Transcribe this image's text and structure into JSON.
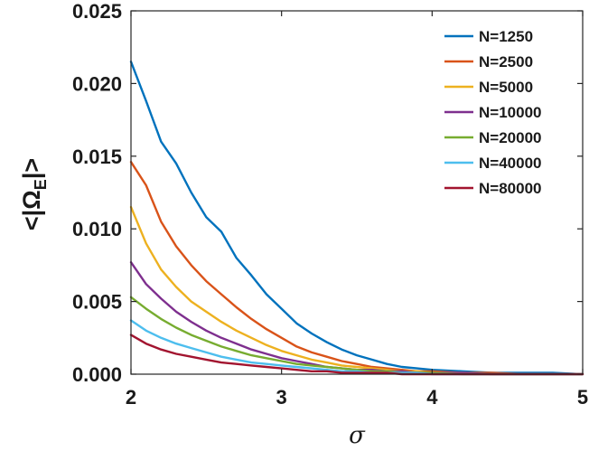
{
  "chart_data": {
    "type": "line",
    "title": "",
    "xlabel": "σ",
    "ylabel_prefix": "<|Ω",
    "ylabel_sub": "E",
    "ylabel_suffix": "|>",
    "xlim": [
      2,
      5
    ],
    "ylim": [
      0,
      0.025
    ],
    "xticks": [
      2,
      3,
      4,
      5
    ],
    "xtick_labels": [
      "2",
      "3",
      "4",
      "5"
    ],
    "yticks": [
      0,
      0.005,
      0.01,
      0.015,
      0.02,
      0.025
    ],
    "ytick_labels": [
      "0.000",
      "0.005",
      "0.010",
      "0.015",
      "0.020",
      "0.025"
    ],
    "grid": false,
    "legend_position": "top-right",
    "x": [
      2.0,
      2.1,
      2.2,
      2.3,
      2.4,
      2.5,
      2.6,
      2.7,
      2.8,
      2.9,
      3.0,
      3.1,
      3.2,
      3.3,
      3.4,
      3.5,
      3.6,
      3.7,
      3.8,
      3.9,
      4.0,
      4.2,
      4.4,
      4.6,
      4.8,
      5.0
    ],
    "series": [
      {
        "name": "N=1250",
        "color": "#0072BD",
        "values": [
          0.0215,
          0.0188,
          0.016,
          0.0145,
          0.0125,
          0.0108,
          0.0098,
          0.008,
          0.0068,
          0.0055,
          0.0045,
          0.0035,
          0.0028,
          0.0022,
          0.0017,
          0.0013,
          0.001,
          0.0007,
          0.0005,
          0.0004,
          0.0003,
          0.0002,
          0.0001,
          0.0001,
          0.0001,
          0.0
        ]
      },
      {
        "name": "N=2500",
        "color": "#D95319",
        "values": [
          0.0146,
          0.013,
          0.0105,
          0.0088,
          0.0075,
          0.0064,
          0.0055,
          0.0046,
          0.0038,
          0.0031,
          0.0025,
          0.0019,
          0.0015,
          0.0012,
          0.0009,
          0.0007,
          0.0005,
          0.0004,
          0.0003,
          0.0002,
          0.0002,
          0.0001,
          0.0001,
          0.0,
          0.0,
          0.0
        ]
      },
      {
        "name": "N=5000",
        "color": "#EDB120",
        "values": [
          0.0115,
          0.009,
          0.0072,
          0.006,
          0.005,
          0.0043,
          0.0036,
          0.003,
          0.0025,
          0.002,
          0.0016,
          0.0013,
          0.001,
          0.0008,
          0.0006,
          0.0005,
          0.0004,
          0.0003,
          0.0002,
          0.0002,
          0.0001,
          0.0001,
          0.0,
          0.0,
          0.0,
          0.0
        ]
      },
      {
        "name": "N=10000",
        "color": "#7E2F8E",
        "values": [
          0.0077,
          0.0062,
          0.0052,
          0.0043,
          0.0036,
          0.003,
          0.0025,
          0.0021,
          0.0017,
          0.0014,
          0.0011,
          0.0009,
          0.0007,
          0.0005,
          0.0004,
          0.0003,
          0.0003,
          0.0002,
          0.0002,
          0.0001,
          0.0001,
          0.0001,
          0.0,
          0.0,
          0.0,
          0.0
        ]
      },
      {
        "name": "N=20000",
        "color": "#77AC30",
        "values": [
          0.0053,
          0.0045,
          0.0038,
          0.0032,
          0.0027,
          0.0023,
          0.0019,
          0.0016,
          0.0013,
          0.0011,
          0.0009,
          0.0007,
          0.0006,
          0.0005,
          0.0004,
          0.0003,
          0.0002,
          0.0002,
          0.0001,
          0.0001,
          0.0001,
          0.0,
          0.0,
          0.0,
          0.0,
          0.0
        ]
      },
      {
        "name": "N=40000",
        "color": "#4DBEEE",
        "values": [
          0.0037,
          0.003,
          0.0025,
          0.0021,
          0.0018,
          0.0015,
          0.0012,
          0.001,
          0.0008,
          0.0007,
          0.0006,
          0.0005,
          0.0004,
          0.0003,
          0.0002,
          0.0002,
          0.0001,
          0.0001,
          0.0001,
          0.0001,
          0.0,
          0.0,
          0.0,
          0.0,
          0.0,
          0.0
        ]
      },
      {
        "name": "N=80000",
        "color": "#A2142F",
        "values": [
          0.0027,
          0.0021,
          0.0017,
          0.0014,
          0.0012,
          0.001,
          0.0008,
          0.0007,
          0.0006,
          0.0005,
          0.0004,
          0.0003,
          0.0002,
          0.0002,
          0.0001,
          0.0001,
          0.0001,
          0.0001,
          0.0,
          0.0,
          0.0,
          0.0,
          0.0,
          0.0,
          0.0,
          0.0
        ]
      }
    ]
  }
}
